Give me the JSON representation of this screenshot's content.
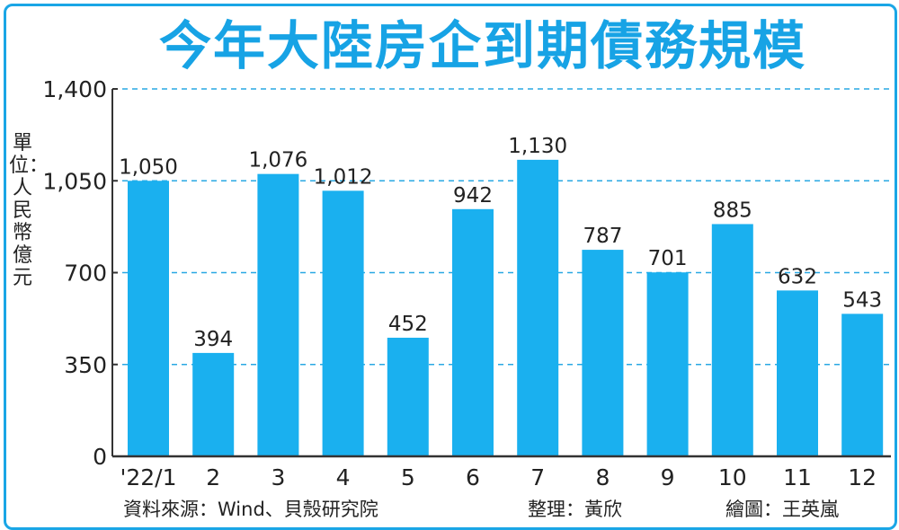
{
  "title": "今年大陸房企到期債務規模",
  "colors": {
    "bar": "#1ab0ef",
    "title": "#17a3e5",
    "grid": "#29a8e3",
    "frame": "#1aa6e6"
  },
  "chart_data": {
    "type": "bar",
    "title": "今年大陸房企到期債務規模",
    "ylabel": "單位：人民幣億元",
    "xlabel": "",
    "categories": [
      "'22/1",
      "2",
      "3",
      "4",
      "5",
      "6",
      "7",
      "8",
      "9",
      "10",
      "11",
      "12"
    ],
    "values": [
      1050,
      394,
      1076,
      1012,
      452,
      942,
      1130,
      787,
      701,
      885,
      632,
      543
    ],
    "value_labels": [
      "1,050",
      "394",
      "1,076",
      "1,012",
      "452",
      "942",
      "1,130",
      "787",
      "701",
      "885",
      "632",
      "543"
    ],
    "yticks": [
      0,
      350,
      700,
      1050,
      1400
    ],
    "ytick_labels": [
      "0",
      "350",
      "700",
      "1,050",
      "1,400"
    ],
    "ylim": [
      0,
      1400
    ],
    "grid": true,
    "grid_style": "dashed",
    "legend": "none"
  },
  "footer": {
    "source": "資料來源：Wind、貝殼研究院",
    "editor": "整理：黃欣",
    "illustrator": "繪圖：王英嵐"
  }
}
